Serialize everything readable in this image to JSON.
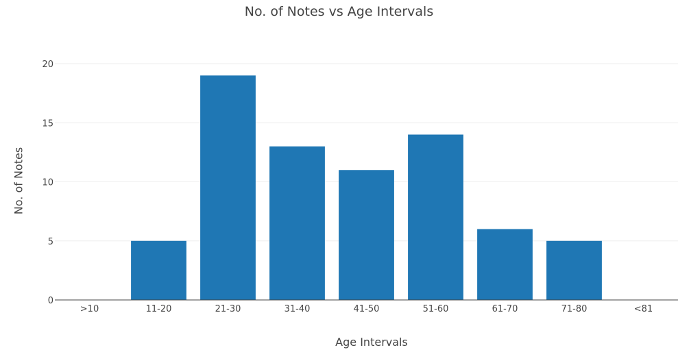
{
  "chart_data": {
    "type": "bar",
    "title": "No. of Notes vs Age Intervals",
    "xlabel": "Age Intervals",
    "ylabel": "No. of Notes",
    "categories": [
      ">10",
      "11-20",
      "21-30",
      "31-40",
      "41-50",
      "51-60",
      "61-70",
      "71-80",
      "<81"
    ],
    "values": [
      0,
      5,
      19,
      13,
      11,
      14,
      6,
      5,
      0
    ],
    "ylim": [
      0,
      20
    ],
    "yticks": [
      0,
      5,
      10,
      15,
      20
    ],
    "grid": true,
    "legend": "none",
    "bar_color": "#1f77b4",
    "grid_color": "#eeeeee",
    "axis_color": "#444444"
  }
}
